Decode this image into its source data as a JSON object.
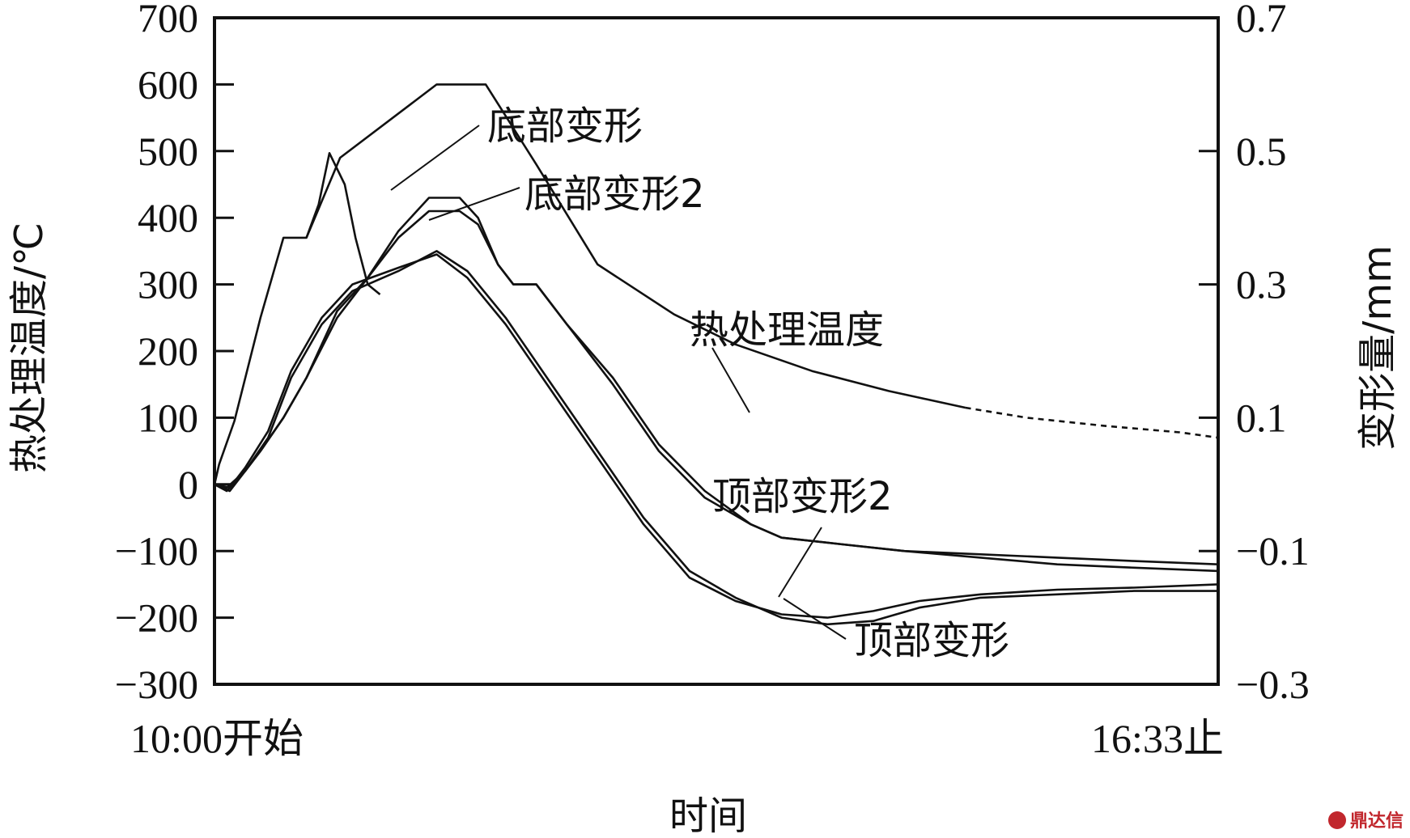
{
  "chart_data": {
    "type": "line",
    "xlabel": "时间",
    "x_start_label": "10:00开始",
    "x_end_label": "16:33止",
    "x_range": [
      "10:00",
      "16:33"
    ],
    "y_left": {
      "label": "热处理温度/℃",
      "range": [
        -300,
        700
      ],
      "ticks": [
        700,
        600,
        500,
        400,
        300,
        200,
        100,
        0,
        -100,
        -200,
        -300
      ],
      "tick_labels": [
        "700",
        "600",
        "500",
        "400",
        "300",
        "200",
        "100",
        "0",
        "−100",
        "−200",
        "−300"
      ]
    },
    "y_right": {
      "label": "变形量/mm",
      "range": [
        -0.3,
        0.7
      ],
      "ticks": [
        0.7,
        0.5,
        0.3,
        0.1,
        -0.1,
        -0.3
      ],
      "tick_labels": [
        "0.7",
        "0.5",
        "0.3",
        "0.1",
        "−0.1",
        "−0.3"
      ]
    },
    "grid": false,
    "series": [
      {
        "name": "热处理温度",
        "axis": "left",
        "style": "solid",
        "points": [
          [
            10.0,
            0
          ],
          [
            10.03,
            30
          ],
          [
            10.13,
            95
          ],
          [
            10.3,
            250
          ],
          [
            10.45,
            370
          ],
          [
            10.6,
            370
          ],
          [
            10.82,
            490
          ],
          [
            11.45,
            600
          ],
          [
            11.77,
            600
          ],
          [
            12.1,
            480
          ],
          [
            12.5,
            330
          ],
          [
            13.0,
            255
          ],
          [
            13.4,
            210
          ],
          [
            13.9,
            170
          ],
          [
            14.4,
            140
          ],
          [
            14.9,
            115
          ]
        ]
      },
      {
        "name": "热处理温度",
        "axis": "left",
        "style": "dashed",
        "points": [
          [
            14.9,
            115
          ],
          [
            15.3,
            100
          ],
          [
            15.8,
            88
          ],
          [
            16.3,
            78
          ],
          [
            16.55,
            70
          ]
        ]
      },
      {
        "name": "",
        "axis": "left",
        "style": "solid",
        "points": [
          [
            10.6,
            370
          ],
          [
            10.68,
            420
          ],
          [
            10.75,
            497
          ],
          [
            10.85,
            450
          ],
          [
            10.92,
            370
          ],
          [
            11.0,
            300
          ],
          [
            11.08,
            285
          ]
        ]
      },
      {
        "name": "底部变形",
        "axis": "right",
        "points": [
          [
            10.0,
            0.0
          ],
          [
            10.08,
            -0.01
          ],
          [
            10.2,
            0.02
          ],
          [
            10.3,
            0.05
          ],
          [
            10.45,
            0.1
          ],
          [
            10.6,
            0.16
          ],
          [
            10.8,
            0.26
          ],
          [
            11.0,
            0.31
          ],
          [
            11.2,
            0.38
          ],
          [
            11.4,
            0.43
          ],
          [
            11.6,
            0.43
          ],
          [
            11.72,
            0.4
          ],
          [
            11.85,
            0.33
          ],
          [
            11.95,
            0.3
          ],
          [
            12.1,
            0.3
          ],
          [
            12.3,
            0.24
          ],
          [
            12.6,
            0.15
          ],
          [
            12.9,
            0.05
          ],
          [
            13.2,
            -0.02
          ],
          [
            13.5,
            -0.06
          ],
          [
            13.7,
            -0.08
          ],
          [
            14.1,
            -0.09
          ],
          [
            14.5,
            -0.1
          ],
          [
            15.0,
            -0.11
          ],
          [
            15.5,
            -0.12
          ],
          [
            16.0,
            -0.125
          ],
          [
            16.55,
            -0.13
          ]
        ]
      },
      {
        "name": "底部变形2",
        "axis": "right",
        "points": [
          [
            10.0,
            0.0
          ],
          [
            10.08,
            -0.005
          ],
          [
            10.2,
            0.02
          ],
          [
            10.3,
            0.05
          ],
          [
            10.45,
            0.1
          ],
          [
            10.6,
            0.16
          ],
          [
            10.8,
            0.25
          ],
          [
            11.0,
            0.31
          ],
          [
            11.2,
            0.37
          ],
          [
            11.4,
            0.41
          ],
          [
            11.6,
            0.41
          ],
          [
            11.72,
            0.39
          ],
          [
            11.85,
            0.33
          ],
          [
            11.95,
            0.3
          ],
          [
            12.1,
            0.3
          ],
          [
            12.3,
            0.24
          ],
          [
            12.6,
            0.16
          ],
          [
            12.9,
            0.06
          ],
          [
            13.2,
            -0.01
          ],
          [
            13.5,
            -0.06
          ],
          [
            13.7,
            -0.08
          ],
          [
            14.1,
            -0.09
          ],
          [
            14.5,
            -0.1
          ],
          [
            15.0,
            -0.105
          ],
          [
            15.5,
            -0.11
          ],
          [
            16.0,
            -0.115
          ],
          [
            16.55,
            -0.12
          ]
        ]
      },
      {
        "name": "顶部变形",
        "axis": "right",
        "points": [
          [
            10.0,
            0.0
          ],
          [
            10.1,
            -0.01
          ],
          [
            10.2,
            0.02
          ],
          [
            10.35,
            0.07
          ],
          [
            10.5,
            0.16
          ],
          [
            10.7,
            0.24
          ],
          [
            10.9,
            0.29
          ],
          [
            11.2,
            0.32
          ],
          [
            11.45,
            0.35
          ],
          [
            11.65,
            0.32
          ],
          [
            11.9,
            0.25
          ],
          [
            12.2,
            0.15
          ],
          [
            12.5,
            0.05
          ],
          [
            12.8,
            -0.05
          ],
          [
            13.1,
            -0.13
          ],
          [
            13.4,
            -0.17
          ],
          [
            13.7,
            -0.2
          ],
          [
            14.0,
            -0.21
          ],
          [
            14.3,
            -0.205
          ],
          [
            14.6,
            -0.185
          ],
          [
            15.0,
            -0.17
          ],
          [
            15.5,
            -0.165
          ],
          [
            16.0,
            -0.16
          ],
          [
            16.55,
            -0.16
          ]
        ]
      },
      {
        "name": "顶部变形2",
        "axis": "right",
        "points": [
          [
            10.0,
            0.0
          ],
          [
            10.1,
            -0.005
          ],
          [
            10.2,
            0.025
          ],
          [
            10.35,
            0.08
          ],
          [
            10.5,
            0.17
          ],
          [
            10.7,
            0.25
          ],
          [
            10.9,
            0.3
          ],
          [
            11.2,
            0.325
          ],
          [
            11.45,
            0.345
          ],
          [
            11.65,
            0.31
          ],
          [
            11.9,
            0.24
          ],
          [
            12.2,
            0.14
          ],
          [
            12.5,
            0.04
          ],
          [
            12.8,
            -0.06
          ],
          [
            13.1,
            -0.14
          ],
          [
            13.4,
            -0.175
          ],
          [
            13.7,
            -0.195
          ],
          [
            14.0,
            -0.2
          ],
          [
            14.3,
            -0.19
          ],
          [
            14.6,
            -0.175
          ],
          [
            15.0,
            -0.165
          ],
          [
            15.5,
            -0.158
          ],
          [
            16.0,
            -0.155
          ],
          [
            16.55,
            -0.15
          ]
        ]
      }
    ],
    "annotations": [
      "底部变形",
      "底部变形2",
      "热处理温度",
      "顶部变形2",
      "顶部变形"
    ]
  },
  "watermark": {
    "text": "鼎达信",
    "color": "#c1272d"
  }
}
